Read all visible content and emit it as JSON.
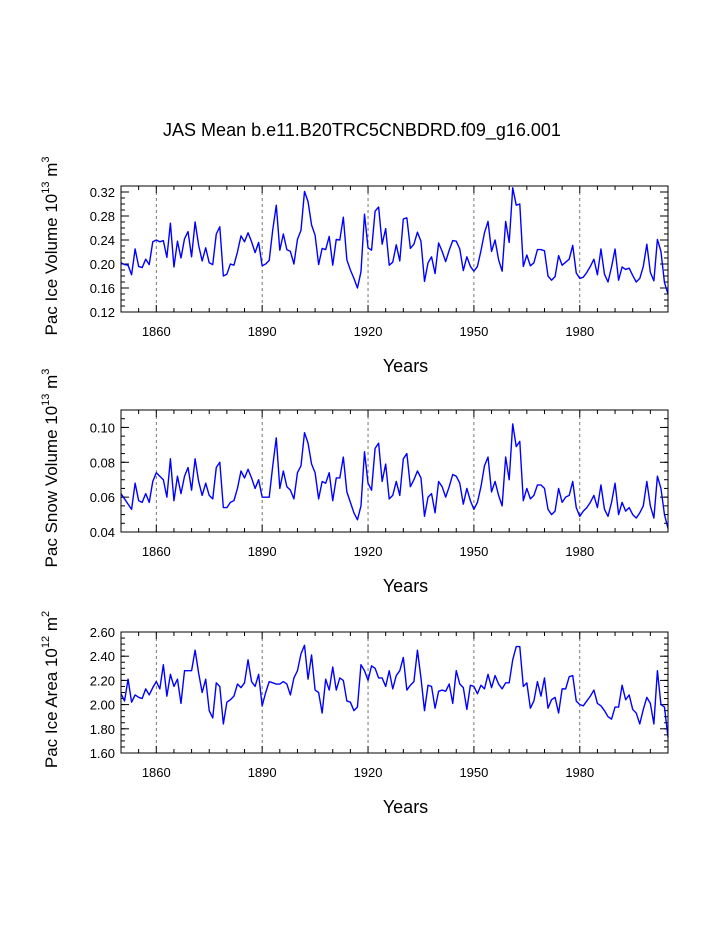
{
  "title": "JAS Mean b.e11.B20TRC5CNBDRD.f09_g16.001",
  "colors": {
    "line": "#0000ff",
    "axis": "#000000",
    "grid": "#555555"
  },
  "chart_data": [
    {
      "type": "line",
      "ylabel": {
        "base": "Pac Ice Volume 10",
        "exp": "13",
        "unit": " m",
        "unit_exp": "3"
      },
      "xlabel": "Years",
      "xlim": [
        1850,
        2005
      ],
      "ylim": [
        0.12,
        0.33
      ],
      "ytick_labels": [
        {
          "value": 0.12,
          "label": "0.12"
        },
        {
          "value": 0.16,
          "label": "0.16"
        },
        {
          "value": 0.2,
          "label": "0.20"
        },
        {
          "value": 0.24,
          "label": "0.24"
        },
        {
          "value": 0.28,
          "label": "0.28"
        },
        {
          "value": 0.32,
          "label": "0.32"
        }
      ],
      "xtick_labels": [
        {
          "value": 1860,
          "label": "1860"
        },
        {
          "value": 1890,
          "label": "1890"
        },
        {
          "value": 1920,
          "label": "1920"
        },
        {
          "value": 1950,
          "label": "1950"
        },
        {
          "value": 1980,
          "label": "1980"
        }
      ],
      "x_start": 1850,
      "values": [
        0.202,
        0.199,
        0.198,
        0.182,
        0.225,
        0.196,
        0.194,
        0.208,
        0.199,
        0.237,
        0.24,
        0.237,
        0.239,
        0.211,
        0.268,
        0.195,
        0.238,
        0.21,
        0.242,
        0.254,
        0.212,
        0.27,
        0.231,
        0.205,
        0.227,
        0.202,
        0.199,
        0.25,
        0.262,
        0.18,
        0.183,
        0.2,
        0.198,
        0.22,
        0.247,
        0.237,
        0.252,
        0.237,
        0.219,
        0.236,
        0.197,
        0.2,
        0.206,
        0.257,
        0.298,
        0.223,
        0.25,
        0.224,
        0.221,
        0.2,
        0.241,
        0.256,
        0.321,
        0.304,
        0.265,
        0.248,
        0.199,
        0.226,
        0.224,
        0.246,
        0.198,
        0.241,
        0.24,
        0.278,
        0.207,
        0.19,
        0.176,
        0.16,
        0.187,
        0.283,
        0.227,
        0.223,
        0.288,
        0.295,
        0.233,
        0.259,
        0.198,
        0.203,
        0.232,
        0.205,
        0.275,
        0.277,
        0.226,
        0.233,
        0.253,
        0.238,
        0.171,
        0.202,
        0.212,
        0.184,
        0.235,
        0.221,
        0.204,
        0.223,
        0.239,
        0.238,
        0.225,
        0.189,
        0.212,
        0.196,
        0.188,
        0.196,
        0.222,
        0.252,
        0.271,
        0.221,
        0.24,
        0.207,
        0.188,
        0.271,
        0.236,
        0.327,
        0.298,
        0.3,
        0.196,
        0.215,
        0.197,
        0.202,
        0.224,
        0.224,
        0.222,
        0.18,
        0.173,
        0.179,
        0.214,
        0.198,
        0.203,
        0.208,
        0.231,
        0.185,
        0.176,
        0.178,
        0.186,
        0.196,
        0.208,
        0.182,
        0.225,
        0.183,
        0.17,
        0.195,
        0.225,
        0.173,
        0.195,
        0.191,
        0.193,
        0.181,
        0.17,
        0.176,
        0.196,
        0.233,
        0.186,
        0.172,
        0.241,
        0.221,
        0.169,
        0.15
      ]
    },
    {
      "type": "line",
      "ylabel": {
        "base": "Pac Snow Volume 10",
        "exp": "13",
        "unit": " m",
        "unit_exp": "3"
      },
      "xlabel": "Years",
      "xlim": [
        1850,
        2005
      ],
      "ylim": [
        0.04,
        0.11
      ],
      "ytick_labels": [
        {
          "value": 0.04,
          "label": "0.04"
        },
        {
          "value": 0.06,
          "label": "0.06"
        },
        {
          "value": 0.08,
          "label": "0.08"
        },
        {
          "value": 0.1,
          "label": "0.10"
        }
      ],
      "xtick_labels": [
        {
          "value": 1860,
          "label": "1860"
        },
        {
          "value": 1890,
          "label": "1890"
        },
        {
          "value": 1920,
          "label": "1920"
        },
        {
          "value": 1950,
          "label": "1950"
        },
        {
          "value": 1980,
          "label": "1980"
        }
      ],
      "x_start": 1850,
      "values": [
        0.062,
        0.059,
        0.056,
        0.053,
        0.068,
        0.058,
        0.057,
        0.062,
        0.057,
        0.069,
        0.074,
        0.072,
        0.07,
        0.06,
        0.082,
        0.058,
        0.072,
        0.062,
        0.072,
        0.077,
        0.064,
        0.082,
        0.069,
        0.061,
        0.068,
        0.061,
        0.059,
        0.077,
        0.08,
        0.054,
        0.054,
        0.057,
        0.058,
        0.065,
        0.075,
        0.071,
        0.076,
        0.071,
        0.065,
        0.07,
        0.06,
        0.06,
        0.06,
        0.078,
        0.094,
        0.065,
        0.075,
        0.066,
        0.064,
        0.059,
        0.074,
        0.078,
        0.097,
        0.091,
        0.079,
        0.074,
        0.059,
        0.069,
        0.068,
        0.074,
        0.058,
        0.071,
        0.071,
        0.083,
        0.063,
        0.057,
        0.051,
        0.047,
        0.055,
        0.086,
        0.068,
        0.064,
        0.088,
        0.091,
        0.069,
        0.079,
        0.059,
        0.061,
        0.069,
        0.061,
        0.082,
        0.085,
        0.066,
        0.07,
        0.075,
        0.071,
        0.049,
        0.06,
        0.062,
        0.051,
        0.069,
        0.066,
        0.06,
        0.066,
        0.073,
        0.072,
        0.068,
        0.056,
        0.065,
        0.058,
        0.053,
        0.057,
        0.066,
        0.078,
        0.083,
        0.063,
        0.069,
        0.061,
        0.055,
        0.083,
        0.07,
        0.102,
        0.089,
        0.092,
        0.058,
        0.065,
        0.059,
        0.061,
        0.067,
        0.067,
        0.065,
        0.053,
        0.05,
        0.052,
        0.065,
        0.057,
        0.06,
        0.061,
        0.069,
        0.054,
        0.049,
        0.052,
        0.054,
        0.057,
        0.061,
        0.054,
        0.067,
        0.053,
        0.049,
        0.057,
        0.068,
        0.05,
        0.057,
        0.052,
        0.054,
        0.05,
        0.048,
        0.051,
        0.055,
        0.069,
        0.055,
        0.048,
        0.072,
        0.065,
        0.05,
        0.042
      ]
    },
    {
      "type": "line",
      "ylabel": {
        "base": "Pac Ice Area 10",
        "exp": "12",
        "unit": " m",
        "unit_exp": "2"
      },
      "xlabel": "Years",
      "xlim": [
        1850,
        2005
      ],
      "ylim": [
        1.6,
        2.6
      ],
      "ytick_labels": [
        {
          "value": 1.6,
          "label": "1.60"
        },
        {
          "value": 1.8,
          "label": "1.80"
        },
        {
          "value": 2.0,
          "label": "2.00"
        },
        {
          "value": 2.2,
          "label": "2.20"
        },
        {
          "value": 2.4,
          "label": "2.40"
        },
        {
          "value": 2.6,
          "label": "2.60"
        }
      ],
      "xtick_labels": [
        {
          "value": 1860,
          "label": "1860"
        },
        {
          "value": 1890,
          "label": "1890"
        },
        {
          "value": 1920,
          "label": "1920"
        },
        {
          "value": 1950,
          "label": "1950"
        },
        {
          "value": 1980,
          "label": "1980"
        }
      ],
      "x_start": 1850,
      "values": [
        2.09,
        2.03,
        2.21,
        2.02,
        2.08,
        2.06,
        2.05,
        2.13,
        2.08,
        2.14,
        2.19,
        2.13,
        2.33,
        2.07,
        2.25,
        2.15,
        2.21,
        2.01,
        2.28,
        2.28,
        2.28,
        2.45,
        2.26,
        2.1,
        2.21,
        1.95,
        1.89,
        2.18,
        2.15,
        1.84,
        2.02,
        2.04,
        2.07,
        2.17,
        2.14,
        2.18,
        2.37,
        2.19,
        2.15,
        2.25,
        1.99,
        2.1,
        2.19,
        2.18,
        2.17,
        2.17,
        2.19,
        2.17,
        2.08,
        2.22,
        2.28,
        2.42,
        2.49,
        2.21,
        2.41,
        2.12,
        2.1,
        1.93,
        2.21,
        2.12,
        2.31,
        2.12,
        2.22,
        2.2,
        2.03,
        2.02,
        1.95,
        1.98,
        2.33,
        2.28,
        2.2,
        2.32,
        2.3,
        2.22,
        2.22,
        2.15,
        2.28,
        2.13,
        2.24,
        2.28,
        2.39,
        2.12,
        2.16,
        2.19,
        2.45,
        2.22,
        1.95,
        2.16,
        2.15,
        1.97,
        2.11,
        2.12,
        2.11,
        2.17,
        2.01,
        2.28,
        2.17,
        2.14,
        1.96,
        2.16,
        2.15,
        2.09,
        2.16,
        2.13,
        2.25,
        2.14,
        2.24,
        2.17,
        2.13,
        2.18,
        2.18,
        2.37,
        2.48,
        2.48,
        2.15,
        2.18,
        1.97,
        2.03,
        2.19,
        2.07,
        2.22,
        1.97,
        2.04,
        2.06,
        1.93,
        2.13,
        2.13,
        2.23,
        2.24,
        2.03,
        2.0,
        1.99,
        2.03,
        2.07,
        2.12,
        2.01,
        1.99,
        1.95,
        1.9,
        1.88,
        1.98,
        1.98,
        2.16,
        2.04,
        2.08,
        1.96,
        1.93,
        1.84,
        1.96,
        2.06,
        2.01,
        1.84,
        2.28,
        2.0,
        1.98,
        1.73
      ]
    }
  ]
}
